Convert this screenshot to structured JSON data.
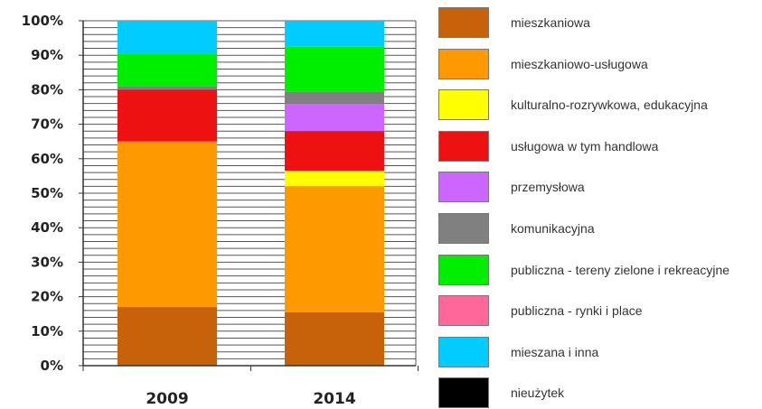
{
  "chart_data": {
    "type": "bar",
    "stacked": true,
    "categories": [
      "2009",
      "2014"
    ],
    "ylim": [
      0,
      100
    ],
    "yticks": [
      "0%",
      "10%",
      "20%",
      "30%",
      "40%",
      "50%",
      "60%",
      "70%",
      "80%",
      "90%",
      "100%"
    ],
    "grid": true,
    "legend_position": "right",
    "series": [
      {
        "name": "mieszkaniowa",
        "color": "#c8620a",
        "values": [
          17,
          15.5
        ]
      },
      {
        "name": "mieszkaniowo-usługowa",
        "color": "#ff9900",
        "values": [
          48,
          36.5
        ]
      },
      {
        "name": "kulturalno-rozrywkowa, edukacyjna",
        "color": "#ffff00",
        "values": [
          0,
          4.5
        ]
      },
      {
        "name": "usługowa w tym handlowa",
        "color": "#ee1111",
        "values": [
          15,
          11.5
        ]
      },
      {
        "name": "przemysłowa",
        "color": "#cc66ff",
        "values": [
          0,
          8
        ]
      },
      {
        "name": "komunikacyjna",
        "color": "#808080",
        "values": [
          1,
          3.5
        ]
      },
      {
        "name": "publiczna - tereny zielone i rekreacyjne",
        "color": "#00ee00",
        "values": [
          9.5,
          13
        ]
      },
      {
        "name": "publiczna - rynki i place",
        "color": "#ff6699",
        "values": [
          0,
          0
        ]
      },
      {
        "name": "mieszana i inna",
        "color": "#00ccff",
        "values": [
          9.5,
          7.5
        ]
      },
      {
        "name": "nieużytek",
        "color": "#000000",
        "values": [
          0,
          0
        ]
      }
    ]
  }
}
